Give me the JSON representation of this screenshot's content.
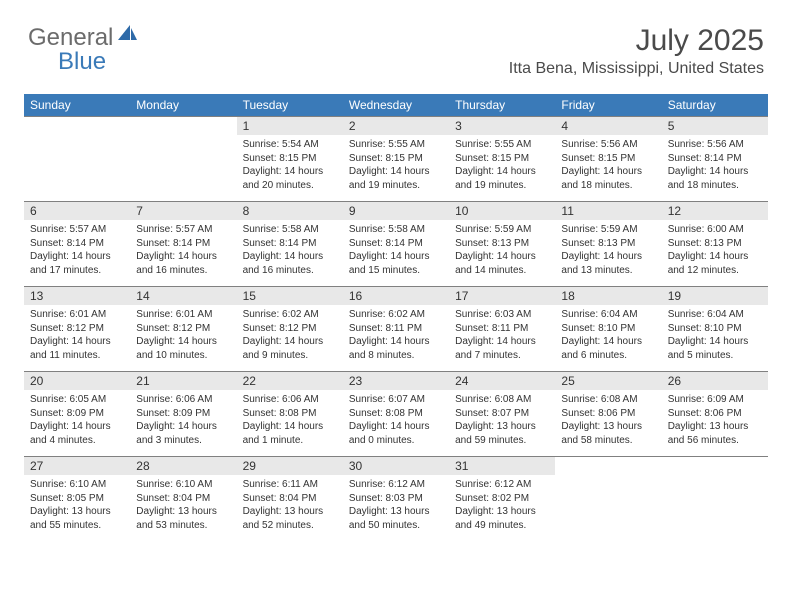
{
  "brand": {
    "text1": "General",
    "text2": "Blue",
    "color1": "#6b6b6b",
    "color2": "#3a7ab8"
  },
  "title": "July 2025",
  "location": "Itta Bena, Mississippi, United States",
  "header_bg": "#3a7ab8",
  "header_fg": "#ffffff",
  "daynum_bg": "#e8e8e8",
  "weekdays": [
    "Sunday",
    "Monday",
    "Tuesday",
    "Wednesday",
    "Thursday",
    "Friday",
    "Saturday"
  ],
  "weeks": [
    [
      null,
      null,
      {
        "n": "1",
        "sr": "5:54 AM",
        "ss": "8:15 PM",
        "dl": "14 hours and 20 minutes."
      },
      {
        "n": "2",
        "sr": "5:55 AM",
        "ss": "8:15 PM",
        "dl": "14 hours and 19 minutes."
      },
      {
        "n": "3",
        "sr": "5:55 AM",
        "ss": "8:15 PM",
        "dl": "14 hours and 19 minutes."
      },
      {
        "n": "4",
        "sr": "5:56 AM",
        "ss": "8:15 PM",
        "dl": "14 hours and 18 minutes."
      },
      {
        "n": "5",
        "sr": "5:56 AM",
        "ss": "8:14 PM",
        "dl": "14 hours and 18 minutes."
      }
    ],
    [
      {
        "n": "6",
        "sr": "5:57 AM",
        "ss": "8:14 PM",
        "dl": "14 hours and 17 minutes."
      },
      {
        "n": "7",
        "sr": "5:57 AM",
        "ss": "8:14 PM",
        "dl": "14 hours and 16 minutes."
      },
      {
        "n": "8",
        "sr": "5:58 AM",
        "ss": "8:14 PM",
        "dl": "14 hours and 16 minutes."
      },
      {
        "n": "9",
        "sr": "5:58 AM",
        "ss": "8:14 PM",
        "dl": "14 hours and 15 minutes."
      },
      {
        "n": "10",
        "sr": "5:59 AM",
        "ss": "8:13 PM",
        "dl": "14 hours and 14 minutes."
      },
      {
        "n": "11",
        "sr": "5:59 AM",
        "ss": "8:13 PM",
        "dl": "14 hours and 13 minutes."
      },
      {
        "n": "12",
        "sr": "6:00 AM",
        "ss": "8:13 PM",
        "dl": "14 hours and 12 minutes."
      }
    ],
    [
      {
        "n": "13",
        "sr": "6:01 AM",
        "ss": "8:12 PM",
        "dl": "14 hours and 11 minutes."
      },
      {
        "n": "14",
        "sr": "6:01 AM",
        "ss": "8:12 PM",
        "dl": "14 hours and 10 minutes."
      },
      {
        "n": "15",
        "sr": "6:02 AM",
        "ss": "8:12 PM",
        "dl": "14 hours and 9 minutes."
      },
      {
        "n": "16",
        "sr": "6:02 AM",
        "ss": "8:11 PM",
        "dl": "14 hours and 8 minutes."
      },
      {
        "n": "17",
        "sr": "6:03 AM",
        "ss": "8:11 PM",
        "dl": "14 hours and 7 minutes."
      },
      {
        "n": "18",
        "sr": "6:04 AM",
        "ss": "8:10 PM",
        "dl": "14 hours and 6 minutes."
      },
      {
        "n": "19",
        "sr": "6:04 AM",
        "ss": "8:10 PM",
        "dl": "14 hours and 5 minutes."
      }
    ],
    [
      {
        "n": "20",
        "sr": "6:05 AM",
        "ss": "8:09 PM",
        "dl": "14 hours and 4 minutes."
      },
      {
        "n": "21",
        "sr": "6:06 AM",
        "ss": "8:09 PM",
        "dl": "14 hours and 3 minutes."
      },
      {
        "n": "22",
        "sr": "6:06 AM",
        "ss": "8:08 PM",
        "dl": "14 hours and 1 minute."
      },
      {
        "n": "23",
        "sr": "6:07 AM",
        "ss": "8:08 PM",
        "dl": "14 hours and 0 minutes."
      },
      {
        "n": "24",
        "sr": "6:08 AM",
        "ss": "8:07 PM",
        "dl": "13 hours and 59 minutes."
      },
      {
        "n": "25",
        "sr": "6:08 AM",
        "ss": "8:06 PM",
        "dl": "13 hours and 58 minutes."
      },
      {
        "n": "26",
        "sr": "6:09 AM",
        "ss": "8:06 PM",
        "dl": "13 hours and 56 minutes."
      }
    ],
    [
      {
        "n": "27",
        "sr": "6:10 AM",
        "ss": "8:05 PM",
        "dl": "13 hours and 55 minutes."
      },
      {
        "n": "28",
        "sr": "6:10 AM",
        "ss": "8:04 PM",
        "dl": "13 hours and 53 minutes."
      },
      {
        "n": "29",
        "sr": "6:11 AM",
        "ss": "8:04 PM",
        "dl": "13 hours and 52 minutes."
      },
      {
        "n": "30",
        "sr": "6:12 AM",
        "ss": "8:03 PM",
        "dl": "13 hours and 50 minutes."
      },
      {
        "n": "31",
        "sr": "6:12 AM",
        "ss": "8:02 PM",
        "dl": "13 hours and 49 minutes."
      },
      null,
      null
    ]
  ],
  "labels": {
    "sunrise": "Sunrise:",
    "sunset": "Sunset:",
    "daylight": "Daylight:"
  }
}
